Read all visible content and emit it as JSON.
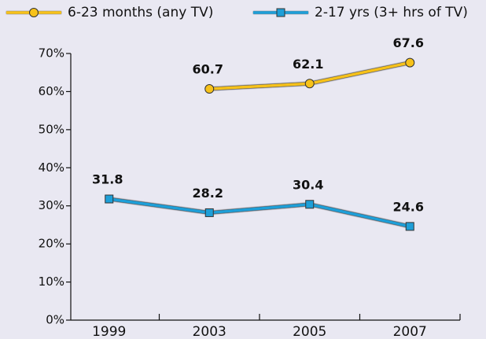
{
  "chart_data": {
    "type": "line",
    "categories": [
      "1999",
      "2003",
      "2005",
      "2007"
    ],
    "series": [
      {
        "name": "6-23 months (any TV)",
        "color": "#f7c21a",
        "marker": "circle",
        "values": [
          null,
          60.7,
          62.1,
          67.6
        ]
      },
      {
        "name": "2-17 yrs (3+ hrs of TV)",
        "color": "#1e9fd8",
        "marker": "square",
        "values": [
          31.8,
          28.2,
          30.4,
          24.6
        ]
      }
    ],
    "ylim": [
      0,
      70
    ],
    "yticks": [
      {
        "value": 0,
        "label": "0%"
      },
      {
        "value": 10,
        "label": "10%"
      },
      {
        "value": 20,
        "label": "20%"
      },
      {
        "value": 30,
        "label": "30%"
      },
      {
        "value": 40,
        "label": "40%"
      },
      {
        "value": 50,
        "label": "50%"
      },
      {
        "value": 60,
        "label": "60%"
      },
      {
        "value": 70,
        "label": "70%"
      }
    ],
    "grid": false
  }
}
